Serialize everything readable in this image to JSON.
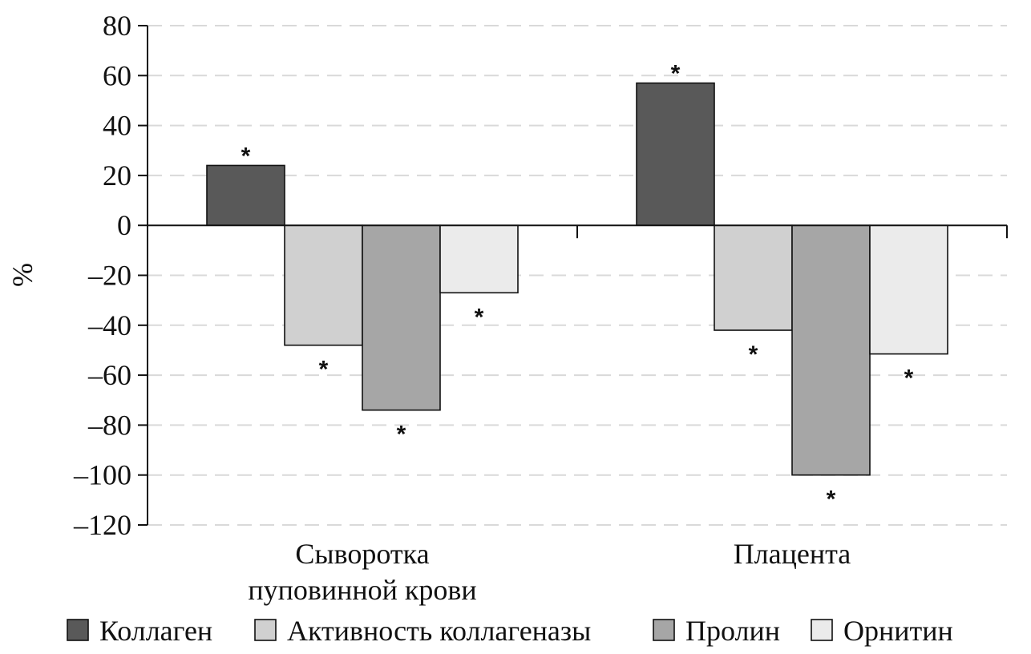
{
  "chart_data": {
    "type": "bar",
    "title": "",
    "xlabel": "",
    "ylabel": "%",
    "ylim": [
      -120,
      80
    ],
    "yticks": [
      80,
      60,
      40,
      20,
      0,
      -20,
      -40,
      -60,
      -80,
      -100,
      -120
    ],
    "ytick_labels": [
      "80",
      "60",
      "40",
      "20",
      "0",
      "–20",
      "–40",
      "–60",
      "–80",
      "–100",
      "–120"
    ],
    "grid": true,
    "legend_position": "bottom",
    "categories": [
      [
        "Сыворотка",
        "пуповинной крови"
      ],
      [
        "Плацента"
      ]
    ],
    "series": [
      {
        "name": "Коллаген",
        "color": "#595959",
        "values": [
          24,
          57
        ],
        "annotations": [
          "*",
          "*"
        ]
      },
      {
        "name": "Активность коллагеназы",
        "color": "#d0d0d0",
        "values": [
          -48,
          -42
        ],
        "annotations": [
          "*",
          "*"
        ]
      },
      {
        "name": "Пролин",
        "color": "#a6a6a6",
        "values": [
          -74,
          -100
        ],
        "annotations": [
          "*",
          "*"
        ]
      },
      {
        "name": "Орнитин",
        "color": "#ebebeb",
        "values": [
          -27,
          -51.5
        ],
        "annotations": [
          "*",
          "*"
        ]
      }
    ]
  }
}
